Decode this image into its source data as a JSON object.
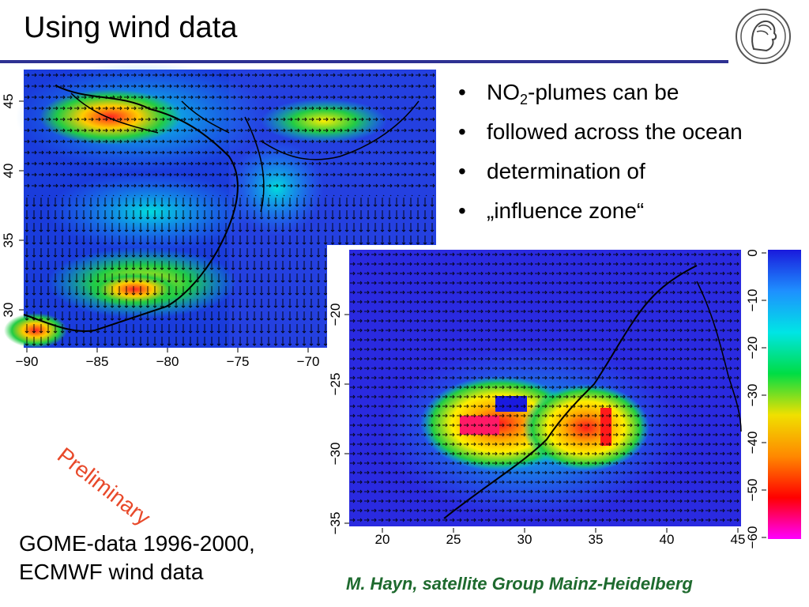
{
  "slide": {
    "title": "Using wind data",
    "bullets": [
      {
        "prefix": "NO",
        "sub": "2",
        "suffix": "-plumes can be"
      },
      {
        "line": "followed across the ocean"
      },
      {
        "line": "determination of"
      },
      {
        "line": "„influence zone“"
      }
    ],
    "watermark": "Preliminary",
    "data_note": [
      "GOME-data 1996-2000,",
      "ECMWF wind data"
    ],
    "credit": "M. Hayn, satellite Group Mainz-Heidelberg",
    "logo_icon": "minerva-head-icon"
  },
  "map_north_america": {
    "x_ticks": [
      "−90",
      "−85",
      "−80",
      "−75",
      "−70"
    ],
    "y_ticks": [
      "45",
      "40",
      "35",
      "30"
    ]
  },
  "map_south_africa": {
    "x_ticks": [
      "20",
      "25",
      "30",
      "35",
      "40",
      "45"
    ],
    "y_ticks": [
      "−20",
      "−25",
      "−30",
      "−35"
    ]
  },
  "colorbar": {
    "ticks": [
      "0",
      "−10",
      "−20",
      "−30",
      "−40",
      "−50",
      "−60"
    ],
    "colors": [
      "#1a1adc",
      "#1e90ff",
      "#00e5e5",
      "#00dd44",
      "#f0e000",
      "#ff8800",
      "#ff0000",
      "#ff00ff"
    ]
  }
}
